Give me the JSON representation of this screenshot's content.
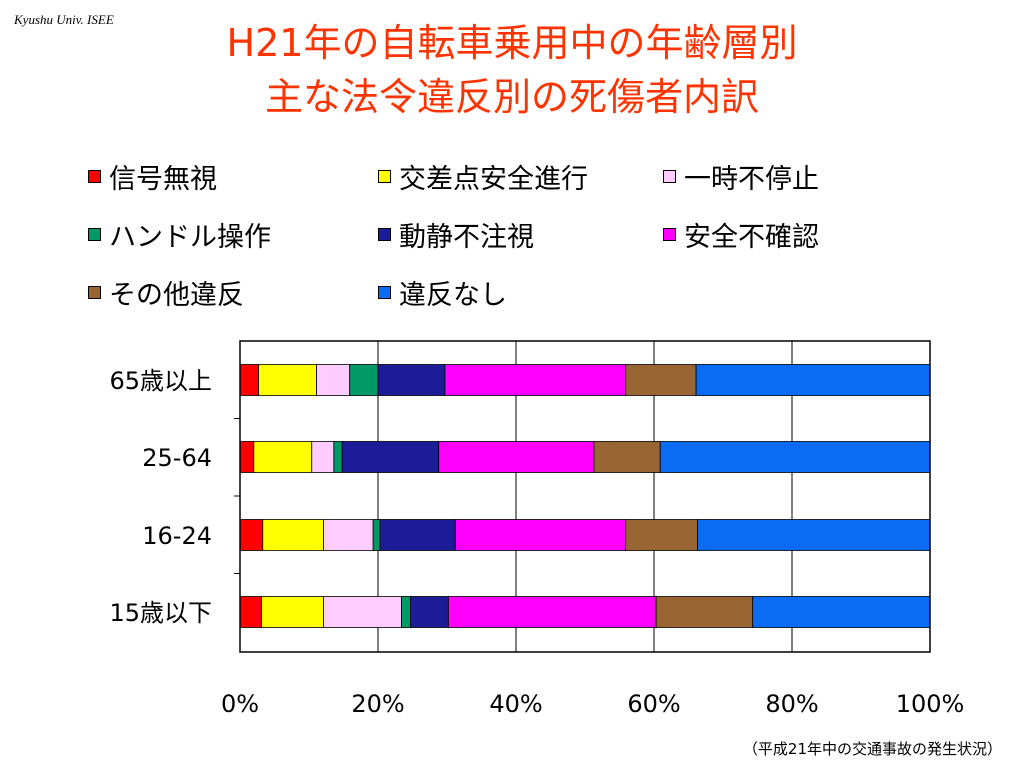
{
  "header": {
    "tag": "Kyushu Univ. ISEE"
  },
  "title": {
    "line1": "H21年の自転車乗用中の年齢層別",
    "line2": "主な法令違反別の死傷者内訳"
  },
  "footnote": "（平成21年中の交通事故の発生状況）",
  "colors": {
    "signal": "#ff0000",
    "crossing": "#ffff00",
    "stop": "#ffccff",
    "handle": "#009966",
    "inattention": "#1c1c99",
    "safety": "#ff00ff",
    "other": "#996633",
    "none": "#0a6cf5"
  },
  "chart_data": {
    "type": "bar",
    "orientation": "horizontal",
    "stacked": "percent",
    "categories": [
      "65歳以上",
      "25-64",
      "16-24",
      "15歳以下"
    ],
    "series": [
      {
        "name": "信号無視",
        "color": "#ff0000",
        "values": [
          2.7,
          2.0,
          3.3,
          3.1
        ]
      },
      {
        "name": "交差点安全進行",
        "color": "#ffff00",
        "values": [
          8.4,
          8.4,
          8.8,
          9.0
        ]
      },
      {
        "name": "一時不停止",
        "color": "#ffccff",
        "values": [
          4.8,
          3.2,
          7.2,
          11.3
        ]
      },
      {
        "name": "ハンドル操作",
        "color": "#009966",
        "values": [
          4.1,
          1.2,
          1.0,
          1.3
        ]
      },
      {
        "name": "動静不注視",
        "color": "#1c1c99",
        "values": [
          9.7,
          14.0,
          10.9,
          5.5
        ]
      },
      {
        "name": "安全不確認",
        "color": "#ff00ff",
        "values": [
          26.2,
          22.5,
          24.7,
          30.1
        ]
      },
      {
        "name": "その他違反",
        "color": "#996633",
        "values": [
          10.2,
          9.6,
          10.4,
          14.0
        ]
      },
      {
        "name": "違反なし",
        "color": "#0a6cf5",
        "values": [
          33.9,
          39.1,
          33.7,
          25.7
        ]
      }
    ],
    "xlim": [
      0,
      100
    ],
    "x_ticks": [
      "0%",
      "20%",
      "40%",
      "60%",
      "80%",
      "100%"
    ],
    "grid": true,
    "legend_position": "top"
  }
}
